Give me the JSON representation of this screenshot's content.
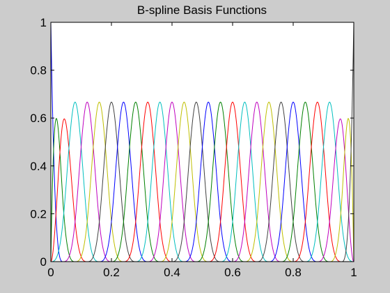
{
  "chart_data": {
    "type": "line",
    "title": "B-spline Basis Functions",
    "xlabel": "",
    "ylabel": "",
    "xlim": [
      0,
      1
    ],
    "ylim": [
      0,
      1
    ],
    "x_ticks": [
      "0",
      "0.2",
      "0.4",
      "0.6",
      "0.8",
      "1"
    ],
    "y_ticks": [
      "0",
      "0.2",
      "0.4",
      "0.6",
      "0.8",
      "1"
    ],
    "grid": false,
    "legend": "none",
    "curve_description": "cubic B-spline basis (clamped, uniform interior knots)",
    "interior_knots": 24,
    "degree": 3,
    "background_color": "#cccccc",
    "plot_background": "#ffffff",
    "series_colors": [
      "#0000ff",
      "#008000",
      "#ff0000",
      "#00bfbf",
      "#bf00bf",
      "#bfbf00",
      "#404040"
    ]
  }
}
